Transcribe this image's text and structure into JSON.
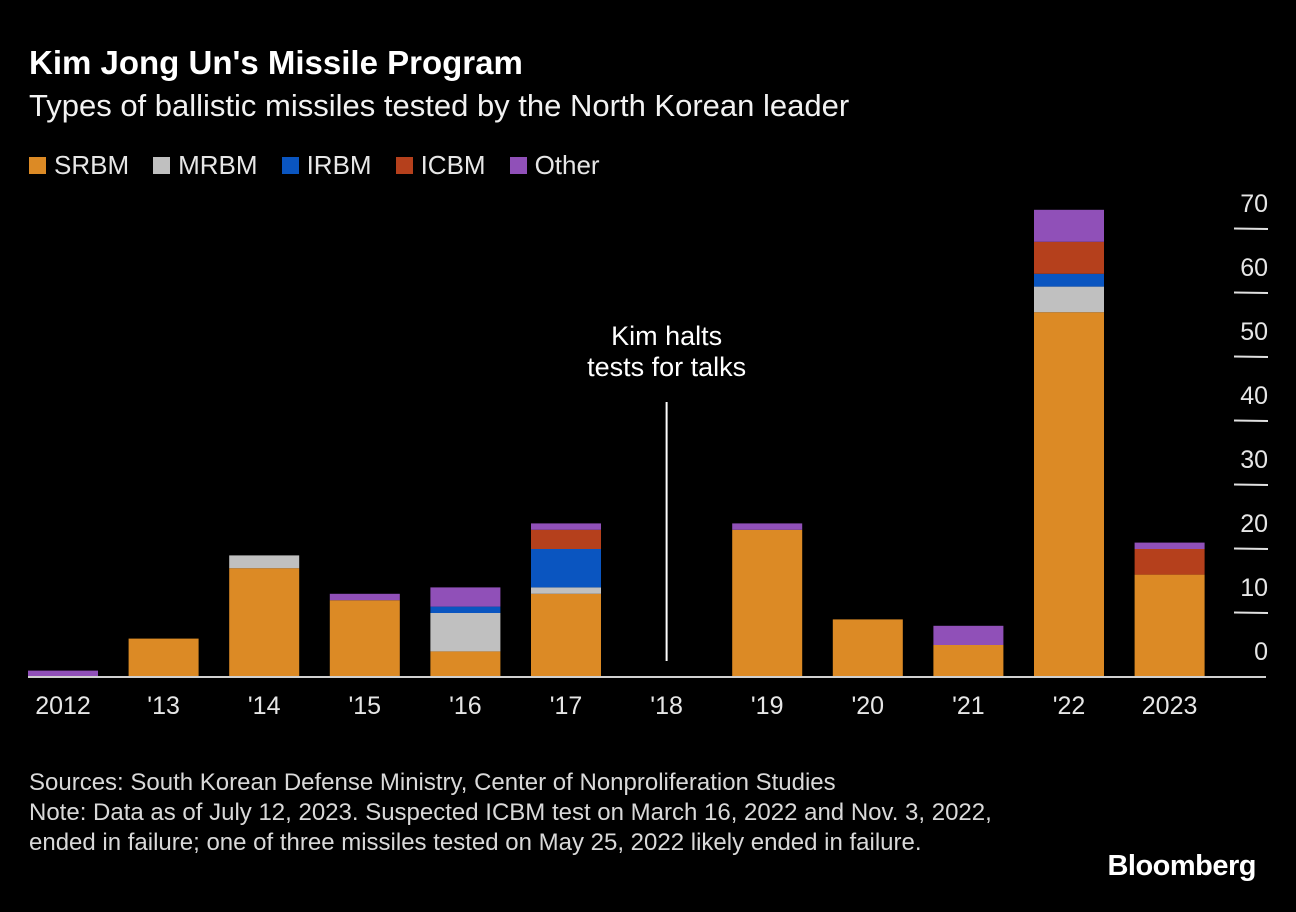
{
  "chart_data": {
    "type": "bar",
    "stacked": true,
    "title": "Kim Jong Un's Missile Program",
    "subtitle": "Types of ballistic missiles tested by the North Korean leader",
    "categories": [
      "2012",
      "'13",
      "'14",
      "'15",
      "'16",
      "'17",
      "'18",
      "'19",
      "'20",
      "'21",
      "'22",
      "2023"
    ],
    "series": [
      {
        "name": "SRBM",
        "color": "#dc8a25",
        "values": [
          0,
          6,
          17,
          12,
          4,
          13,
          0,
          23,
          9,
          5,
          57,
          16
        ]
      },
      {
        "name": "MRBM",
        "color": "#c0c0c0",
        "values": [
          0,
          0,
          2,
          0,
          6,
          1,
          0,
          0,
          0,
          0,
          4,
          0
        ]
      },
      {
        "name": "IRBM",
        "color": "#0a55c0",
        "values": [
          0,
          0,
          0,
          0,
          1,
          6,
          0,
          0,
          0,
          0,
          2,
          0
        ]
      },
      {
        "name": "ICBM",
        "color": "#b5401c",
        "values": [
          0,
          0,
          0,
          0,
          0,
          3,
          0,
          0,
          0,
          0,
          5,
          4
        ]
      },
      {
        "name": "Other",
        "color": "#9050b8",
        "values": [
          1,
          0,
          0,
          1,
          3,
          1,
          0,
          1,
          0,
          3,
          5,
          1
        ]
      }
    ],
    "yticks": [
      0,
      10,
      20,
      30,
      40,
      50,
      60,
      70
    ],
    "ylim": [
      0,
      74
    ],
    "yaxis_position": "right",
    "grid": false,
    "legend_position": "top-left",
    "annotation": {
      "category": "'18",
      "text_lines": [
        "Kim halts",
        "tests for talks"
      ]
    }
  },
  "footer": {
    "sources": "Sources: South Korean Defense Ministry, Center of Nonproliferation Studies",
    "note": "Note: Data as of July 12, 2023. Suspected ICBM test on March 16, 2022 and Nov. 3, 2022, ended in failure; one of three missiles tested on May 25, 2022 likely ended in failure."
  },
  "brand": "Bloomberg"
}
